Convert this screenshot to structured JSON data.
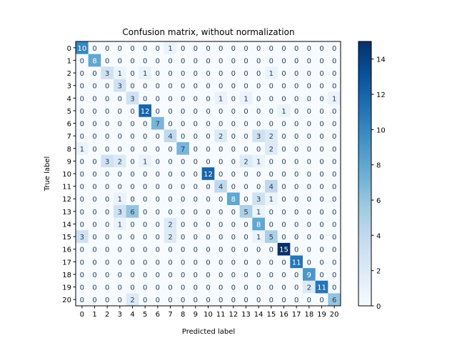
{
  "chart_data": {
    "type": "heatmap",
    "title": "Confusion matrix, without normalization",
    "xlabel": "Predicted label",
    "ylabel": "True label",
    "labels": [
      "0",
      "1",
      "2",
      "3",
      "4",
      "5",
      "6",
      "7",
      "8",
      "9",
      "10",
      "11",
      "12",
      "13",
      "14",
      "15",
      "16",
      "17",
      "18",
      "19",
      "20"
    ],
    "matrix": [
      [
        10,
        0,
        0,
        0,
        0,
        0,
        0,
        1,
        0,
        0,
        0,
        0,
        0,
        0,
        0,
        0,
        0,
        0,
        0,
        0,
        0
      ],
      [
        0,
        8,
        0,
        0,
        0,
        0,
        0,
        0,
        0,
        0,
        0,
        0,
        0,
        0,
        0,
        0,
        0,
        0,
        0,
        0,
        0
      ],
      [
        0,
        0,
        3,
        1,
        0,
        1,
        0,
        0,
        0,
        0,
        0,
        0,
        0,
        0,
        0,
        1,
        0,
        0,
        0,
        0,
        0
      ],
      [
        0,
        0,
        0,
        3,
        0,
        0,
        0,
        0,
        0,
        0,
        0,
        0,
        0,
        0,
        0,
        0,
        0,
        0,
        0,
        0,
        0
      ],
      [
        0,
        0,
        0,
        0,
        3,
        0,
        0,
        0,
        0,
        0,
        0,
        1,
        0,
        1,
        0,
        0,
        0,
        0,
        0,
        0,
        1
      ],
      [
        0,
        0,
        0,
        0,
        0,
        12,
        0,
        0,
        0,
        0,
        0,
        0,
        0,
        0,
        0,
        0,
        1,
        0,
        0,
        0,
        0
      ],
      [
        0,
        0,
        0,
        0,
        0,
        0,
        7,
        0,
        0,
        0,
        0,
        0,
        0,
        0,
        0,
        0,
        0,
        0,
        0,
        0,
        0
      ],
      [
        0,
        0,
        0,
        0,
        0,
        0,
        0,
        4,
        0,
        0,
        0,
        2,
        0,
        0,
        3,
        2,
        0,
        0,
        0,
        0,
        0
      ],
      [
        1,
        0,
        0,
        0,
        0,
        0,
        0,
        0,
        7,
        0,
        0,
        0,
        0,
        0,
        0,
        2,
        0,
        0,
        0,
        0,
        0
      ],
      [
        0,
        0,
        3,
        2,
        0,
        1,
        0,
        0,
        0,
        0,
        0,
        0,
        0,
        2,
        1,
        0,
        0,
        0,
        0,
        0,
        0
      ],
      [
        0,
        0,
        0,
        0,
        0,
        0,
        0,
        0,
        0,
        0,
        12,
        0,
        0,
        0,
        0,
        0,
        0,
        0,
        0,
        0,
        0
      ],
      [
        0,
        0,
        0,
        0,
        0,
        0,
        0,
        0,
        0,
        0,
        0,
        4,
        0,
        0,
        0,
        4,
        0,
        0,
        0,
        0,
        0
      ],
      [
        0,
        0,
        0,
        1,
        0,
        0,
        0,
        0,
        0,
        0,
        0,
        0,
        8,
        0,
        3,
        1,
        0,
        0,
        0,
        0,
        0
      ],
      [
        0,
        0,
        0,
        3,
        6,
        0,
        0,
        0,
        0,
        0,
        0,
        0,
        0,
        5,
        1,
        0,
        0,
        0,
        0,
        0,
        0
      ],
      [
        0,
        0,
        0,
        1,
        0,
        0,
        0,
        2,
        0,
        0,
        0,
        0,
        0,
        0,
        8,
        0,
        0,
        0,
        0,
        0,
        0
      ],
      [
        3,
        0,
        0,
        0,
        0,
        0,
        0,
        2,
        0,
        0,
        0,
        0,
        0,
        0,
        1,
        5,
        0,
        0,
        0,
        0,
        0
      ],
      [
        0,
        0,
        0,
        0,
        0,
        0,
        0,
        0,
        0,
        0,
        0,
        0,
        0,
        0,
        0,
        0,
        15,
        0,
        0,
        0,
        0
      ],
      [
        0,
        0,
        0,
        0,
        0,
        0,
        0,
        0,
        0,
        0,
        0,
        0,
        0,
        0,
        0,
        0,
        0,
        11,
        0,
        0,
        0
      ],
      [
        0,
        0,
        0,
        0,
        0,
        0,
        0,
        0,
        0,
        0,
        0,
        0,
        0,
        0,
        0,
        0,
        0,
        0,
        9,
        0,
        0
      ],
      [
        0,
        0,
        0,
        0,
        0,
        0,
        0,
        0,
        0,
        0,
        0,
        0,
        0,
        0,
        0,
        0,
        0,
        0,
        2,
        11,
        0
      ],
      [
        0,
        0,
        0,
        0,
        2,
        0,
        0,
        0,
        0,
        0,
        0,
        0,
        0,
        0,
        0,
        0,
        0,
        0,
        0,
        0,
        6
      ]
    ],
    "colorbar": {
      "range": [
        0,
        15
      ],
      "ticks": [
        0,
        2,
        4,
        6,
        8,
        10,
        12,
        14
      ],
      "colormap": "Blues",
      "colors": [
        "#f7fbff",
        "#deebf7",
        "#c6dbef",
        "#9ecae1",
        "#6baed6",
        "#4292c6",
        "#2171b5",
        "#08519c",
        "#08306b"
      ]
    },
    "grid": false,
    "legend": "colorbar-right"
  }
}
